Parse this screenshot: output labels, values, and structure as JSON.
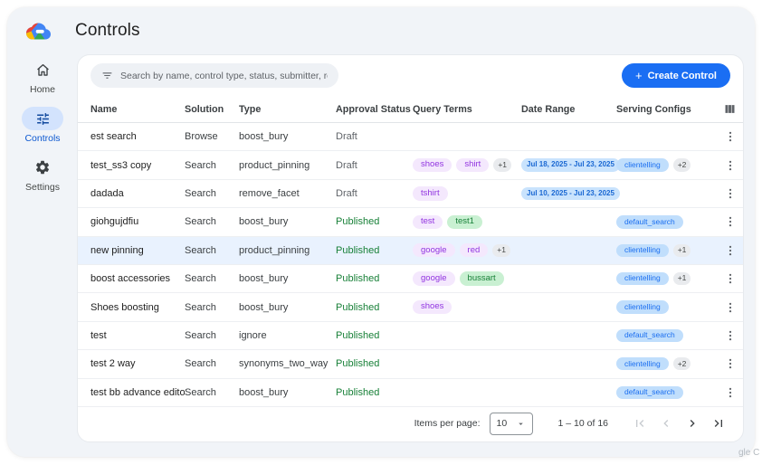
{
  "app": {
    "title": "Controls",
    "logo_icon": "google-cloud-logo",
    "watermark": "gle C"
  },
  "sidebar": {
    "items": [
      {
        "label": "Home",
        "icon": "home-icon",
        "active": false
      },
      {
        "label": "Controls",
        "icon": "tune-icon",
        "active": true
      },
      {
        "label": "Settings",
        "icon": "gear-icon",
        "active": false
      }
    ]
  },
  "toolbar": {
    "search": {
      "icon": "filter-icon",
      "placeholder": "Search by name, control type, status, submitter, requested on",
      "value": ""
    },
    "create_button": {
      "icon": "plus-icon",
      "label": "Create Control"
    }
  },
  "table": {
    "columns": [
      "Name",
      "Solution",
      "Type",
      "Approval Status",
      "Query Terms",
      "Date Range",
      "Serving Configs"
    ],
    "columns_icon": "view-columns-icon",
    "row_action_icon": "kebab-menu-icon",
    "rows": [
      {
        "name": "est search",
        "solution": "Browse",
        "type": "boost_bury",
        "status": "Draft",
        "query_terms": [],
        "query_more": null,
        "date_range": null,
        "serving_config": null,
        "serving_more": null,
        "highlighted": false
      },
      {
        "name": "test_ss3 copy",
        "solution": "Search",
        "type": "product_pinning",
        "status": "Draft",
        "query_terms": [
          {
            "text": "shoes",
            "color": "purple"
          },
          {
            "text": "shirt",
            "color": "purple"
          }
        ],
        "query_more": "+1",
        "date_range": "Jul 18, 2025 - Jul 23, 2025",
        "serving_config": "clientelling",
        "serving_more": "+2",
        "highlighted": false
      },
      {
        "name": "dadada",
        "solution": "Search",
        "type": "remove_facet",
        "status": "Draft",
        "query_terms": [
          {
            "text": "tshirt",
            "color": "purple"
          }
        ],
        "query_more": null,
        "date_range": "Jul 10, 2025 - Jul 23, 2025",
        "serving_config": null,
        "serving_more": null,
        "highlighted": false
      },
      {
        "name": "giohgujdfiu",
        "solution": "Search",
        "type": "boost_bury",
        "status": "Published",
        "query_terms": [
          {
            "text": "test",
            "color": "purple"
          },
          {
            "text": "test1",
            "color": "green"
          }
        ],
        "query_more": null,
        "date_range": null,
        "serving_config": "default_search",
        "serving_more": null,
        "highlighted": false
      },
      {
        "name": "new pinning",
        "solution": "Search",
        "type": "product_pinning",
        "status": "Published",
        "query_terms": [
          {
            "text": "google",
            "color": "purple"
          },
          {
            "text": "red",
            "color": "purple"
          }
        ],
        "query_more": "+1",
        "date_range": null,
        "serving_config": "clientelling",
        "serving_more": "+1",
        "highlighted": true
      },
      {
        "name": "boost accessories",
        "solution": "Search",
        "type": "boost_bury",
        "status": "Published",
        "query_terms": [
          {
            "text": "google",
            "color": "purple"
          },
          {
            "text": "bussart",
            "color": "green"
          }
        ],
        "query_more": null,
        "date_range": null,
        "serving_config": "clientelling",
        "serving_more": "+1",
        "highlighted": false
      },
      {
        "name": "Shoes boosting",
        "solution": "Search",
        "type": "boost_bury",
        "status": "Published",
        "query_terms": [
          {
            "text": "shoes",
            "color": "purple"
          }
        ],
        "query_more": null,
        "date_range": null,
        "serving_config": "clientelling",
        "serving_more": null,
        "highlighted": false
      },
      {
        "name": "test",
        "solution": "Search",
        "type": "ignore",
        "status": "Published",
        "query_terms": [],
        "query_more": null,
        "date_range": null,
        "serving_config": "default_search",
        "serving_more": null,
        "highlighted": false
      },
      {
        "name": "test 2 way",
        "solution": "Search",
        "type": "synonyms_two_way",
        "status": "Published",
        "query_terms": [],
        "query_more": null,
        "date_range": null,
        "serving_config": "clientelling",
        "serving_more": "+2",
        "highlighted": false
      },
      {
        "name": "test bb advance editor",
        "solution": "Search",
        "type": "boost_bury",
        "status": "Published",
        "query_terms": [],
        "query_more": null,
        "date_range": null,
        "serving_config": "default_search",
        "serving_more": null,
        "highlighted": false
      }
    ]
  },
  "pagination": {
    "items_per_page_label": "Items per page:",
    "items_per_page_value": "10",
    "range_label": "1 – 10 of 16",
    "nav_icons": [
      "first-page-icon",
      "prev-page-icon",
      "next-page-icon",
      "last-page-icon"
    ]
  },
  "colors": {
    "accent": "#1a6ef3",
    "active_nav_bg": "#d3e3fd",
    "published_text": "#188038",
    "draft_text": "#5f6368",
    "chip_purple_bg": "#f4e8fd",
    "chip_purple_text": "#9133e0",
    "chip_green_bg": "#c9f0d2",
    "chip_green_text": "#188038",
    "chip_blue_bg": "#c0defc",
    "chip_blue_text": "#1a6ef0",
    "chip_date_bg": "#c9e3fd",
    "chip_date_text": "#1967d2",
    "badge_bg": "#e9ebee",
    "badge_text": "#444746",
    "row_highlight": "#e9f2fe",
    "shell_bg": "#f1f4f8"
  }
}
